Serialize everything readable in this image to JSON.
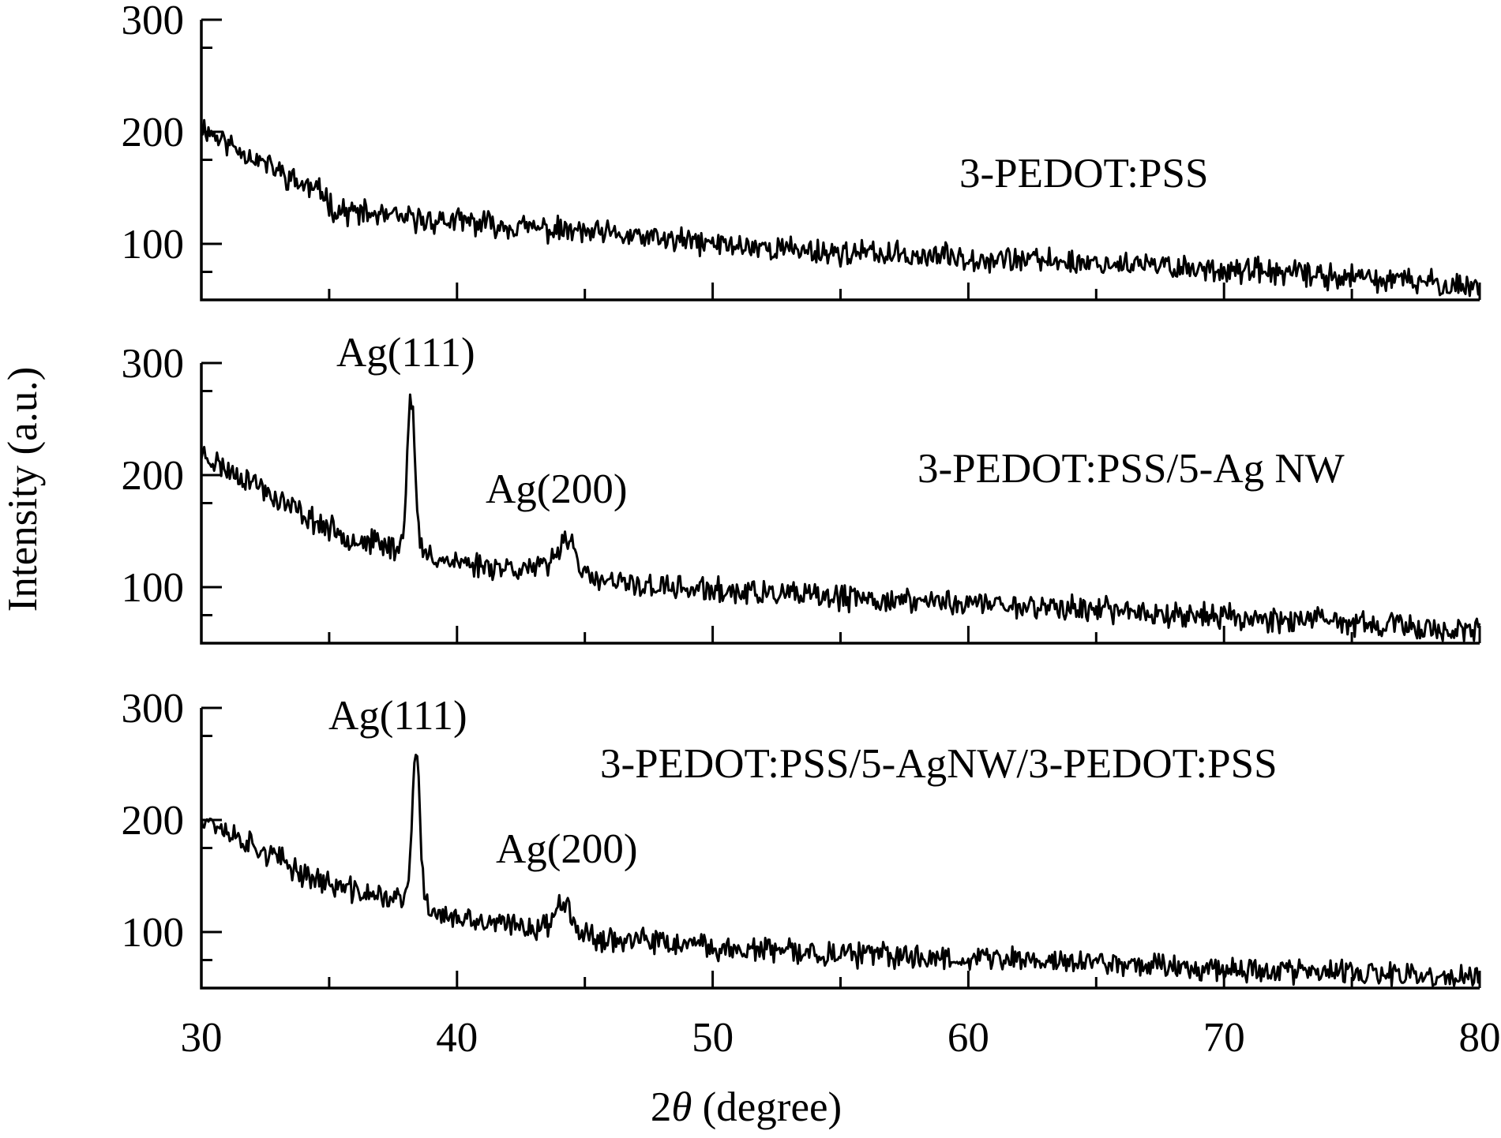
{
  "chart_data": {
    "type": "line",
    "xlabel_prefix": "2",
    "xlabel_symbol": "θ",
    "xlabel_suffix": " (degree)",
    "ylabel": "Intensity (a.u.)",
    "xlim": [
      30,
      80
    ],
    "x_ticks": [
      "30",
      "40",
      "50",
      "60",
      "70",
      "80"
    ],
    "panels": [
      {
        "name": "3-PEDOT:PSS",
        "ylim": [
          50,
          300
        ],
        "y_ticks": [
          "100",
          "200",
          "300"
        ],
        "trend": [
          [
            30,
            205
          ],
          [
            31,
            190
          ],
          [
            32,
            178
          ],
          [
            33,
            165
          ],
          [
            34,
            152
          ],
          [
            34.8,
            145
          ],
          [
            35.2,
            130
          ],
          [
            36,
            128
          ],
          [
            38,
            122
          ],
          [
            40,
            120
          ],
          [
            42,
            116
          ],
          [
            44,
            112
          ],
          [
            46,
            108
          ],
          [
            48,
            104
          ],
          [
            50,
            100
          ],
          [
            55,
            92
          ],
          [
            60,
            88
          ],
          [
            65,
            83
          ],
          [
            70,
            77
          ],
          [
            75,
            70
          ],
          [
            80,
            62
          ]
        ],
        "noise": 9,
        "seed": 11,
        "peaks": []
      },
      {
        "name": "3-PEDOT:PSS/5-Ag NW",
        "ylim": [
          50,
          300
        ],
        "y_ticks": [
          "100",
          "200",
          "300"
        ],
        "trend": [
          [
            30,
            220
          ],
          [
            31,
            205
          ],
          [
            32,
            195
          ],
          [
            33,
            178
          ],
          [
            34,
            165
          ],
          [
            35,
            152
          ],
          [
            36,
            143
          ],
          [
            37,
            138
          ],
          [
            38,
            133
          ],
          [
            39,
            128
          ],
          [
            40,
            122
          ],
          [
            42,
            118
          ],
          [
            43.5,
            116
          ],
          [
            45,
            106
          ],
          [
            48,
            100
          ],
          [
            50,
            97
          ],
          [
            55,
            90
          ],
          [
            60,
            86
          ],
          [
            65,
            80
          ],
          [
            70,
            74
          ],
          [
            75,
            68
          ],
          [
            80,
            60
          ]
        ],
        "noise": 9,
        "seed": 23,
        "peaks": [
          {
            "label": "Ag(111)",
            "center": 38.2,
            "height": 140,
            "width": 0.15
          },
          {
            "label": "Ag(200)",
            "center": 44.3,
            "height": 35,
            "width": 0.35
          }
        ]
      },
      {
        "name": "3-PEDOT:PSS/5-AgNW/3-PEDOT:PSS",
        "ylim": [
          50,
          300
        ],
        "y_ticks": [
          "100",
          "200",
          "300"
        ],
        "trend": [
          [
            30,
            205
          ],
          [
            31,
            190
          ],
          [
            32,
            178
          ],
          [
            33,
            165
          ],
          [
            34,
            152
          ],
          [
            35,
            143
          ],
          [
            36,
            136
          ],
          [
            37,
            132
          ],
          [
            38,
            128
          ],
          [
            39,
            120
          ],
          [
            40,
            110
          ],
          [
            42,
            106
          ],
          [
            43.5,
            104
          ],
          [
            45,
            96
          ],
          [
            48,
            90
          ],
          [
            50,
            86
          ],
          [
            55,
            80
          ],
          [
            60,
            77
          ],
          [
            65,
            73
          ],
          [
            70,
            68
          ],
          [
            75,
            63
          ],
          [
            80,
            58
          ]
        ],
        "noise": 9,
        "seed": 37,
        "peaks": [
          {
            "label": "Ag(111)",
            "center": 38.4,
            "height": 135,
            "width": 0.15
          },
          {
            "label": "Ag(200)",
            "center": 44.2,
            "height": 30,
            "width": 0.3
          }
        ]
      }
    ]
  }
}
